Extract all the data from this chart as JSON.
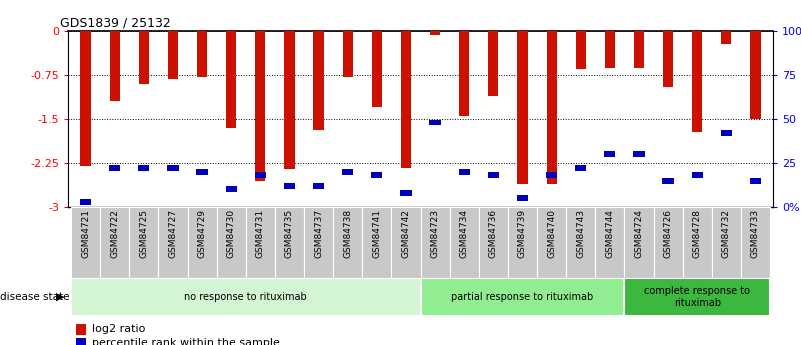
{
  "title": "GDS1839 / 25132",
  "samples": [
    "GSM84721",
    "GSM84722",
    "GSM84725",
    "GSM84727",
    "GSM84729",
    "GSM84730",
    "GSM84731",
    "GSM84735",
    "GSM84737",
    "GSM84738",
    "GSM84741",
    "GSM84742",
    "GSM84723",
    "GSM84734",
    "GSM84736",
    "GSM84739",
    "GSM84740",
    "GSM84743",
    "GSM84744",
    "GSM84724",
    "GSM84726",
    "GSM84728",
    "GSM84732",
    "GSM84733"
  ],
  "log2_ratio": [
    -2.3,
    -1.2,
    -0.9,
    -0.82,
    -0.78,
    -1.65,
    -2.55,
    -2.35,
    -1.68,
    -0.78,
    -1.3,
    -2.33,
    -0.07,
    -1.45,
    -1.1,
    -2.6,
    -2.6,
    -0.65,
    -0.63,
    -0.63,
    -0.95,
    -1.72,
    -0.22,
    -1.5
  ],
  "percentile": [
    3,
    22,
    22,
    22,
    20,
    10,
    18,
    12,
    12,
    20,
    18,
    8,
    48,
    20,
    18,
    5,
    18,
    22,
    30,
    30,
    15,
    18,
    42,
    15
  ],
  "groups": [
    {
      "label": "no response to rituximab",
      "start": 0,
      "end": 12,
      "color": "#d4f5d4"
    },
    {
      "label": "partial response to rituximab",
      "start": 12,
      "end": 19,
      "color": "#90ee90"
    },
    {
      "label": "complete response to\nrituximab",
      "start": 19,
      "end": 24,
      "color": "#3cb840"
    }
  ],
  "bar_color": "#cc1100",
  "dot_color": "#0000bb",
  "ylim_left": [
    -3,
    0
  ],
  "yticks_left": [
    0,
    -0.75,
    -1.5,
    -2.25,
    -3
  ],
  "ytick_labels_left": [
    "0",
    "-0.75",
    "-1.5",
    "-2.25",
    "-3"
  ],
  "yticks_right": [
    0,
    25,
    50,
    75,
    100
  ],
  "ytick_labels_right": [
    "0%",
    "25",
    "50",
    "75",
    "100%"
  ],
  "bg_color": "#ffffff",
  "plot_bg_color": "#ffffff",
  "xtick_box_color": "#c8c8c8",
  "legend_items": [
    {
      "label": "log2 ratio",
      "color": "#cc1100"
    },
    {
      "label": "percentile rank within the sample",
      "color": "#0000bb"
    }
  ]
}
